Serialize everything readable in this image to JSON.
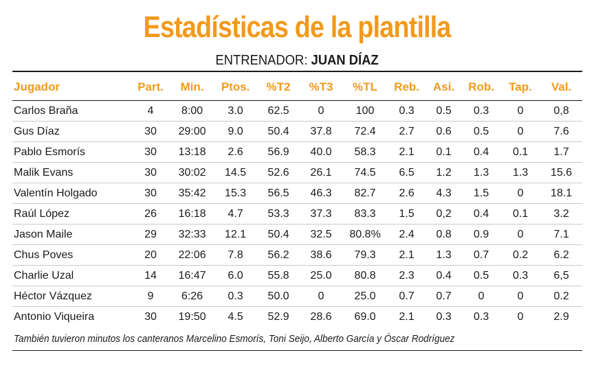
{
  "title": "Estadísticas de la plantilla",
  "coach": {
    "label": "ENTRENADOR:",
    "name": "JUAN DÍAZ"
  },
  "table": {
    "headers": [
      "Jugador",
      "Part.",
      "Min.",
      "Ptos.",
      "%T2",
      "%T3",
      "%TL",
      "Reb.",
      "Asi.",
      "Rob.",
      "Tap.",
      "Val."
    ],
    "rows": [
      [
        "Carlos Braña",
        "4",
        "8:00",
        "3.0",
        "62.5",
        "0",
        "100",
        "0.3",
        "0.5",
        "0.3",
        "0",
        "0,8"
      ],
      [
        "Gus Díaz",
        "30",
        "29:00",
        "9.0",
        "50.4",
        "37.8",
        "72.4",
        "2.7",
        "0.6",
        "0.5",
        "0",
        "7.6"
      ],
      [
        "Pablo Esmorís",
        "30",
        "13:18",
        "2.6",
        "56.9",
        "40.0",
        "58.3",
        "2.1",
        "0.1",
        "0.4",
        "0.1",
        "1.7"
      ],
      [
        "Malik Evans",
        "30",
        "30:02",
        "14.5",
        "52.6",
        "26.1",
        "74.5",
        "6.5",
        "1.2",
        "1.3",
        "1.3",
        "15.6"
      ],
      [
        "Valentín Holgado",
        "30",
        "35:42",
        "15.3",
        "56.5",
        "46.3",
        "82.7",
        "2.6",
        "4.3",
        "1.5",
        "0",
        "18.1"
      ],
      [
        "Raúl López",
        "26",
        "16:18",
        "4.7",
        "53.3",
        "37.3",
        "83.3",
        "1.5",
        "0,2",
        "0.4",
        "0.1",
        "3.2"
      ],
      [
        "Jason Maile",
        "29",
        "32:33",
        "12.1",
        "50.4",
        "32.5",
        "80.8%",
        "2.4",
        "0.8",
        "0.9",
        "0",
        "7.1"
      ],
      [
        "Chus Poves",
        "20",
        "22:06",
        "7.8",
        "56.2",
        "38.6",
        "79.3",
        "2.1",
        "1.3",
        "0.7",
        "0.2",
        "6.2"
      ],
      [
        "Charlie Uzal",
        "14",
        "16:47",
        "6.0",
        "55.8",
        "25.0",
        "80.8",
        "2.3",
        "0.4",
        "0.5",
        "0.3",
        "6,5"
      ],
      [
        "Héctor Vázquez",
        "9",
        "6:26",
        "0.3",
        "50.0",
        "0",
        "25.0",
        "0.7",
        "0.7",
        "0",
        "0",
        "0.2"
      ],
      [
        "Antonio Viqueira",
        "30",
        "19:50",
        "4.5",
        "52.9",
        "28.6",
        "69.0",
        "2.1",
        "0.3",
        "0.3",
        "0",
        "2.9"
      ]
    ]
  },
  "footnote": "También tuvieron minutos los canteranos Marcelino Esmorís, Toni Seijo, Alberto García y Óscar Rodríguez",
  "colors": {
    "accent": "#f29a1c",
    "text": "#1a1a1a"
  }
}
